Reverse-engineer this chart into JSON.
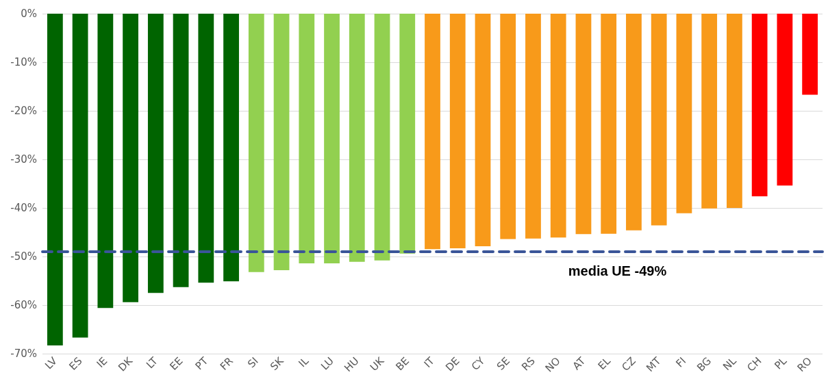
{
  "chart_data": {
    "type": "bar",
    "categories": [
      "LV",
      "ES",
      "IE",
      "DK",
      "LT",
      "EE",
      "PT",
      "FR",
      "SI",
      "SK",
      "IL",
      "LU",
      "HU",
      "UK",
      "BE",
      "IT",
      "DE",
      "CY",
      "SE",
      "RS",
      "NO",
      "AT",
      "EL",
      "CZ",
      "MT",
      "FI",
      "BG",
      "NL",
      "CH",
      "PL",
      "RO"
    ],
    "values": [
      -68.3,
      -66.7,
      -60.6,
      -59.4,
      -57.5,
      -56.3,
      -55.4,
      -55.1,
      -53.2,
      -52.8,
      -51.4,
      -51.4,
      -51.1,
      -50.8,
      -49.4,
      -48.5,
      -48.3,
      -47.9,
      -46.4,
      -46.3,
      -46.1,
      -45.4,
      -45.3,
      -44.6,
      -43.6,
      -41.1,
      -40.1,
      -40.0,
      -37.6,
      -35.4,
      -16.7
    ],
    "colors": [
      "#006400",
      "#006400",
      "#006400",
      "#006400",
      "#006400",
      "#006400",
      "#006400",
      "#006400",
      "#92d050",
      "#92d050",
      "#92d050",
      "#92d050",
      "#92d050",
      "#92d050",
      "#92d050",
      "#f89a1a",
      "#f89a1a",
      "#f89a1a",
      "#f89a1a",
      "#f89a1a",
      "#f89a1a",
      "#f89a1a",
      "#f89a1a",
      "#f89a1a",
      "#f89a1a",
      "#f89a1a",
      "#f89a1a",
      "#f89a1a",
      "#ff0000",
      "#ff0000",
      "#ff0000"
    ],
    "ylim": [
      -70,
      0
    ],
    "yticks": [
      {
        "value": -70,
        "label": "-70%"
      },
      {
        "value": -60,
        "label": "-60%"
      },
      {
        "value": -50,
        "label": "-50%"
      },
      {
        "value": -40,
        "label": "-40%"
      },
      {
        "value": -30,
        "label": "-30%"
      },
      {
        "value": -20,
        "label": "-20%"
      },
      {
        "value": -10,
        "label": "-10%"
      },
      {
        "value": 0,
        "label": "0%"
      }
    ],
    "grid": "y",
    "ref_lines": [
      {
        "axis": "y",
        "value": -49,
        "label": "media UE -49%",
        "color": "#3a5598",
        "line_style": "dashed"
      }
    ]
  }
}
